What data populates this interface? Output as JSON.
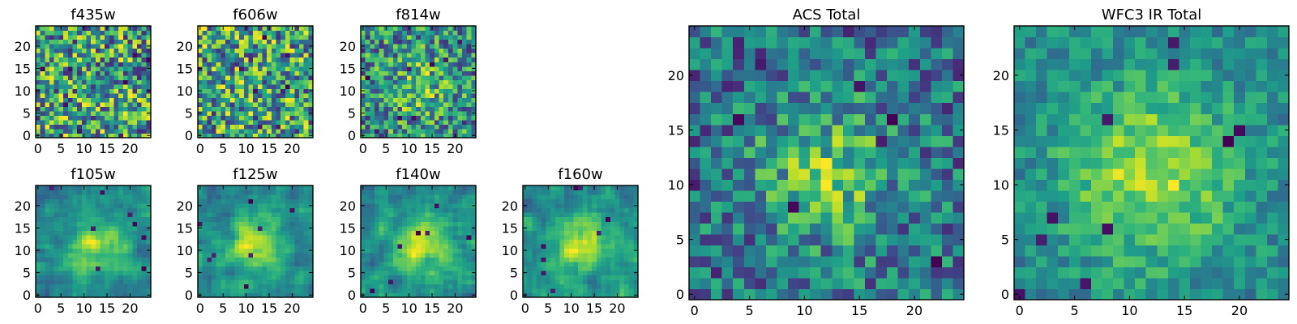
{
  "colors": {
    "colormap": "viridis",
    "background": "#ffffff",
    "axis": "#000000"
  },
  "chart_data": [
    {
      "type": "heatmap",
      "title": "f435w",
      "grid": false,
      "nx": 25,
      "ny": 25,
      "xlim": [
        -0.5,
        24.5
      ],
      "ylim": [
        -0.5,
        24.5
      ],
      "xticks": [
        0,
        5,
        10,
        15,
        20
      ],
      "yticks": [
        0,
        5,
        10,
        15,
        20
      ],
      "structure": "noise"
    },
    {
      "type": "heatmap",
      "title": "f606w",
      "grid": false,
      "nx": 25,
      "ny": 25,
      "xlim": [
        -0.5,
        24.5
      ],
      "ylim": [
        -0.5,
        24.5
      ],
      "xticks": [
        0,
        5,
        10,
        15,
        20
      ],
      "yticks": [
        0,
        5,
        10,
        15,
        20
      ],
      "structure": "noise"
    },
    {
      "type": "heatmap",
      "title": "f814w",
      "grid": false,
      "nx": 25,
      "ny": 25,
      "xlim": [
        -0.5,
        24.5
      ],
      "ylim": [
        -0.5,
        24.5
      ],
      "xticks": [
        0,
        5,
        10,
        15,
        20
      ],
      "yticks": [
        0,
        5,
        10,
        15,
        20
      ],
      "structure": "noise-with-weak-central-source"
    },
    {
      "type": "heatmap",
      "title": "f105w",
      "grid": false,
      "nx": 25,
      "ny": 25,
      "xlim": [
        -0.5,
        24.5
      ],
      "ylim": [
        -0.5,
        24.5
      ],
      "xticks": [
        0,
        5,
        10,
        15,
        20
      ],
      "yticks": [
        0,
        5,
        10,
        15,
        20
      ],
      "structure": "smoothed-noise-central-source"
    },
    {
      "type": "heatmap",
      "title": "f125w",
      "grid": false,
      "nx": 25,
      "ny": 25,
      "xlim": [
        -0.5,
        24.5
      ],
      "ylim": [
        -0.5,
        24.5
      ],
      "xticks": [
        0,
        5,
        10,
        15,
        20
      ],
      "yticks": [
        0,
        5,
        10,
        15,
        20
      ],
      "structure": "smoothed-noise-central-source"
    },
    {
      "type": "heatmap",
      "title": "f140w",
      "grid": false,
      "nx": 25,
      "ny": 25,
      "xlim": [
        -0.5,
        24.5
      ],
      "ylim": [
        -0.5,
        24.5
      ],
      "xticks": [
        0,
        5,
        10,
        15,
        20
      ],
      "yticks": [
        0,
        5,
        10,
        15,
        20
      ],
      "structure": "smoothed-noise-central-source"
    },
    {
      "type": "heatmap",
      "title": "f160w",
      "grid": false,
      "nx": 25,
      "ny": 25,
      "xlim": [
        -0.5,
        24.5
      ],
      "ylim": [
        -0.5,
        24.5
      ],
      "xticks": [
        0,
        5,
        10,
        15,
        20
      ],
      "yticks": [
        0,
        5,
        10,
        15,
        20
      ],
      "structure": "smoothed-noise-central-source"
    },
    {
      "type": "heatmap",
      "title": "ACS Total",
      "grid": false,
      "nx": 25,
      "ny": 25,
      "xlim": [
        -0.5,
        24.5
      ],
      "ylim": [
        -0.5,
        24.5
      ],
      "xticks": [
        0,
        5,
        10,
        15,
        20
      ],
      "yticks": [
        0,
        5,
        10,
        15,
        20
      ],
      "structure": "noise-with-central-source"
    },
    {
      "type": "heatmap",
      "title": "WFC3 IR Total",
      "grid": false,
      "nx": 25,
      "ny": 25,
      "xlim": [
        -0.5,
        24.5
      ],
      "ylim": [
        -0.5,
        24.5
      ],
      "xticks": [
        0,
        5,
        10,
        15,
        20
      ],
      "yticks": [
        0,
        5,
        10,
        15,
        20
      ],
      "structure": "central-source"
    }
  ]
}
